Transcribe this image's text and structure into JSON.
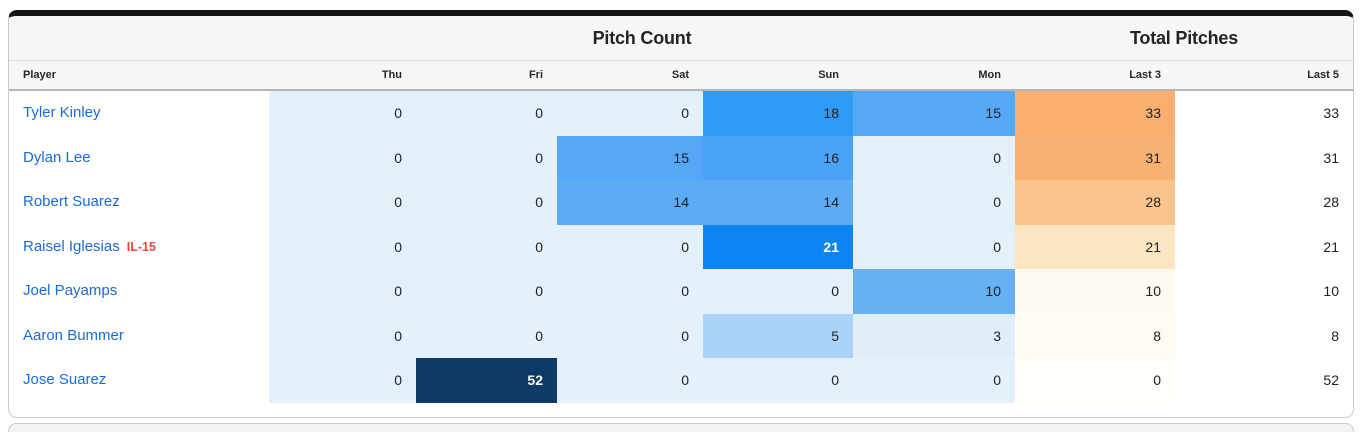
{
  "card": {
    "section_headers": [
      {
        "label": "Pitch Count"
      },
      {
        "label": "Total Pitches"
      }
    ],
    "columns": [
      {
        "label": "Player"
      },
      {
        "label": "Thu"
      },
      {
        "label": "Fri"
      },
      {
        "label": "Sat"
      },
      {
        "label": "Sun"
      },
      {
        "label": "Mon"
      },
      {
        "label": "Last 3"
      },
      {
        "label": "Last 5"
      }
    ],
    "colors": {
      "player_link": "#1b6bd1",
      "status_red": "#e8453a",
      "zero_blue": "#e4f0fb",
      "max_navy": "#0e3a66",
      "strong_blue": "#0c85f3",
      "orange_high": "#f8af70"
    },
    "rows": [
      {
        "player": "Tyler Kinley",
        "status": "",
        "cells": [
          {
            "v": "0",
            "bg": "#e4f0fb",
            "fg": ""
          },
          {
            "v": "0",
            "bg": "#e4f0fb",
            "fg": ""
          },
          {
            "v": "0",
            "bg": "#e4f0fb",
            "fg": ""
          },
          {
            "v": "18",
            "bg": "#309af7",
            "fg": ""
          },
          {
            "v": "15",
            "bg": "#54a8f6",
            "fg": ""
          },
          {
            "v": "33",
            "bg": "#f8af70",
            "fg": ""
          },
          {
            "v": "33",
            "bg": "",
            "fg": ""
          }
        ]
      },
      {
        "player": "Dylan Lee",
        "status": "",
        "cells": [
          {
            "v": "0",
            "bg": "#e4f0fb",
            "fg": ""
          },
          {
            "v": "0",
            "bg": "#e4f0fb",
            "fg": ""
          },
          {
            "v": "15",
            "bg": "#54a8f6",
            "fg": ""
          },
          {
            "v": "16",
            "bg": "#4aa3f6",
            "fg": ""
          },
          {
            "v": "0",
            "bg": "#e4f0fb",
            "fg": ""
          },
          {
            "v": "31",
            "bg": "#f8b173",
            "fg": ""
          },
          {
            "v": "31",
            "bg": "",
            "fg": ""
          }
        ]
      },
      {
        "player": "Robert Suarez",
        "status": "",
        "cells": [
          {
            "v": "0",
            "bg": "#e4f0fb",
            "fg": ""
          },
          {
            "v": "0",
            "bg": "#e4f0fb",
            "fg": ""
          },
          {
            "v": "14",
            "bg": "#5cabf5",
            "fg": ""
          },
          {
            "v": "14",
            "bg": "#5cabf5",
            "fg": ""
          },
          {
            "v": "0",
            "bg": "#e4f0fb",
            "fg": ""
          },
          {
            "v": "28",
            "bg": "#f9c58e",
            "fg": ""
          },
          {
            "v": "28",
            "bg": "",
            "fg": ""
          }
        ]
      },
      {
        "player": "Raisel Iglesias",
        "status": "IL-15",
        "cells": [
          {
            "v": "0",
            "bg": "#e4f0fb",
            "fg": ""
          },
          {
            "v": "0",
            "bg": "#e4f0fb",
            "fg": ""
          },
          {
            "v": "0",
            "bg": "#e4f0fb",
            "fg": ""
          },
          {
            "v": "21",
            "bg": "#0c85f3",
            "fg": "#ffffff"
          },
          {
            "v": "0",
            "bg": "#e4f0fb",
            "fg": ""
          },
          {
            "v": "21",
            "bg": "#fce6c2",
            "fg": ""
          },
          {
            "v": "21",
            "bg": "",
            "fg": ""
          }
        ]
      },
      {
        "player": "Joel Payamps",
        "status": "",
        "cells": [
          {
            "v": "0",
            "bg": "#e4f0fb",
            "fg": ""
          },
          {
            "v": "0",
            "bg": "#e4f0fb",
            "fg": ""
          },
          {
            "v": "0",
            "bg": "#e4f0fb",
            "fg": ""
          },
          {
            "v": "0",
            "bg": "#e4f0fb",
            "fg": ""
          },
          {
            "v": "10",
            "bg": "#66b0f3",
            "fg": ""
          },
          {
            "v": "10",
            "bg": "#fefaf1",
            "fg": ""
          },
          {
            "v": "10",
            "bg": "",
            "fg": ""
          }
        ]
      },
      {
        "player": "Aaron Bummer",
        "status": "",
        "cells": [
          {
            "v": "0",
            "bg": "#e4f0fb",
            "fg": ""
          },
          {
            "v": "0",
            "bg": "#e4f0fb",
            "fg": ""
          },
          {
            "v": "0",
            "bg": "#e4f0fb",
            "fg": ""
          },
          {
            "v": "5",
            "bg": "#aad3f7",
            "fg": ""
          },
          {
            "v": "3",
            "bg": "#e0eefa",
            "fg": ""
          },
          {
            "v": "8",
            "bg": "#fefbf3",
            "fg": ""
          },
          {
            "v": "8",
            "bg": "",
            "fg": ""
          }
        ]
      },
      {
        "player": "Jose Suarez",
        "status": "",
        "cells": [
          {
            "v": "0",
            "bg": "#e4f0fb",
            "fg": ""
          },
          {
            "v": "52",
            "bg": "#0e3a66",
            "fg": "#ffffff"
          },
          {
            "v": "0",
            "bg": "#e4f0fb",
            "fg": ""
          },
          {
            "v": "0",
            "bg": "#e4f0fb",
            "fg": ""
          },
          {
            "v": "0",
            "bg": "#e4f0fb",
            "fg": ""
          },
          {
            "v": "0",
            "bg": "#fffdf7",
            "fg": ""
          },
          {
            "v": "52",
            "bg": "",
            "fg": ""
          }
        ]
      }
    ]
  }
}
